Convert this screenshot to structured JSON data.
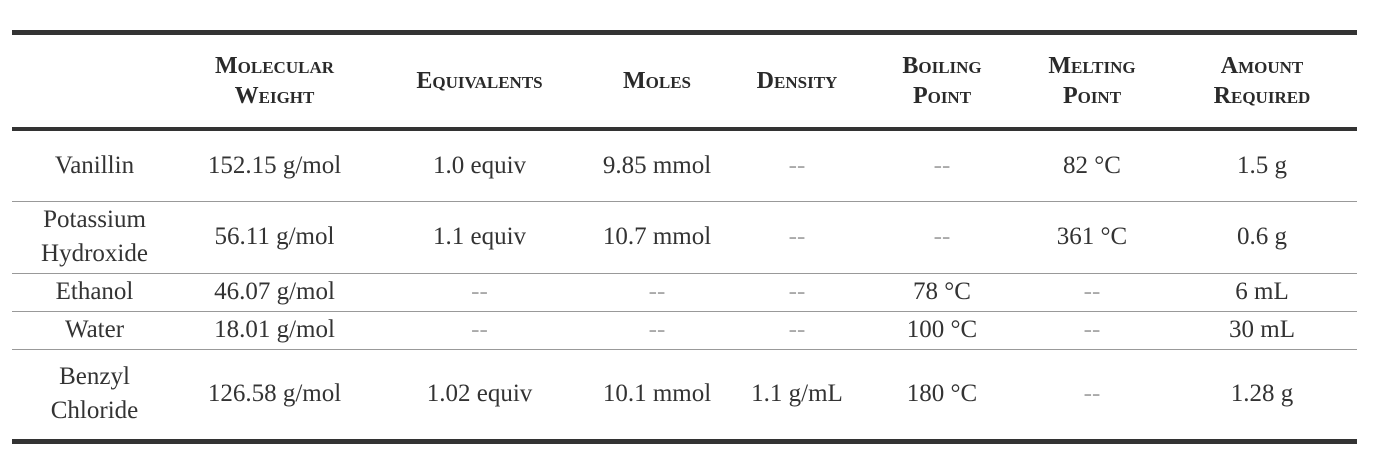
{
  "table": {
    "header": [
      "",
      "Molecular Weight",
      "Equivalents",
      "Moles",
      "Density",
      "Boiling Point",
      "Melting Point",
      "Amount Required"
    ],
    "rows": [
      [
        "Vanillin",
        "152.15 g/mol",
        "1.0 equiv",
        "9.85 mmol",
        "--",
        "--",
        "82 °C",
        "1.5 g"
      ],
      [
        "Potassium Hydroxide",
        "56.11 g/mol",
        "1.1 equiv",
        "10.7 mmol",
        "--",
        "--",
        "361 °C",
        "0.6 g"
      ],
      [
        "Ethanol",
        "46.07 g/mol",
        "--",
        "--",
        "--",
        "78 °C",
        "--",
        "6 mL"
      ],
      [
        "Water",
        "18.01 g/mol",
        "--",
        "--",
        "--",
        "100 °C",
        "--",
        "30 mL"
      ],
      [
        "Benzyl Chloride",
        "126.58 g/mol",
        "1.02 equiv",
        "10.1 mmol",
        "1.1 g/mL",
        "180 °C",
        "--",
        "1.28 g"
      ]
    ]
  }
}
